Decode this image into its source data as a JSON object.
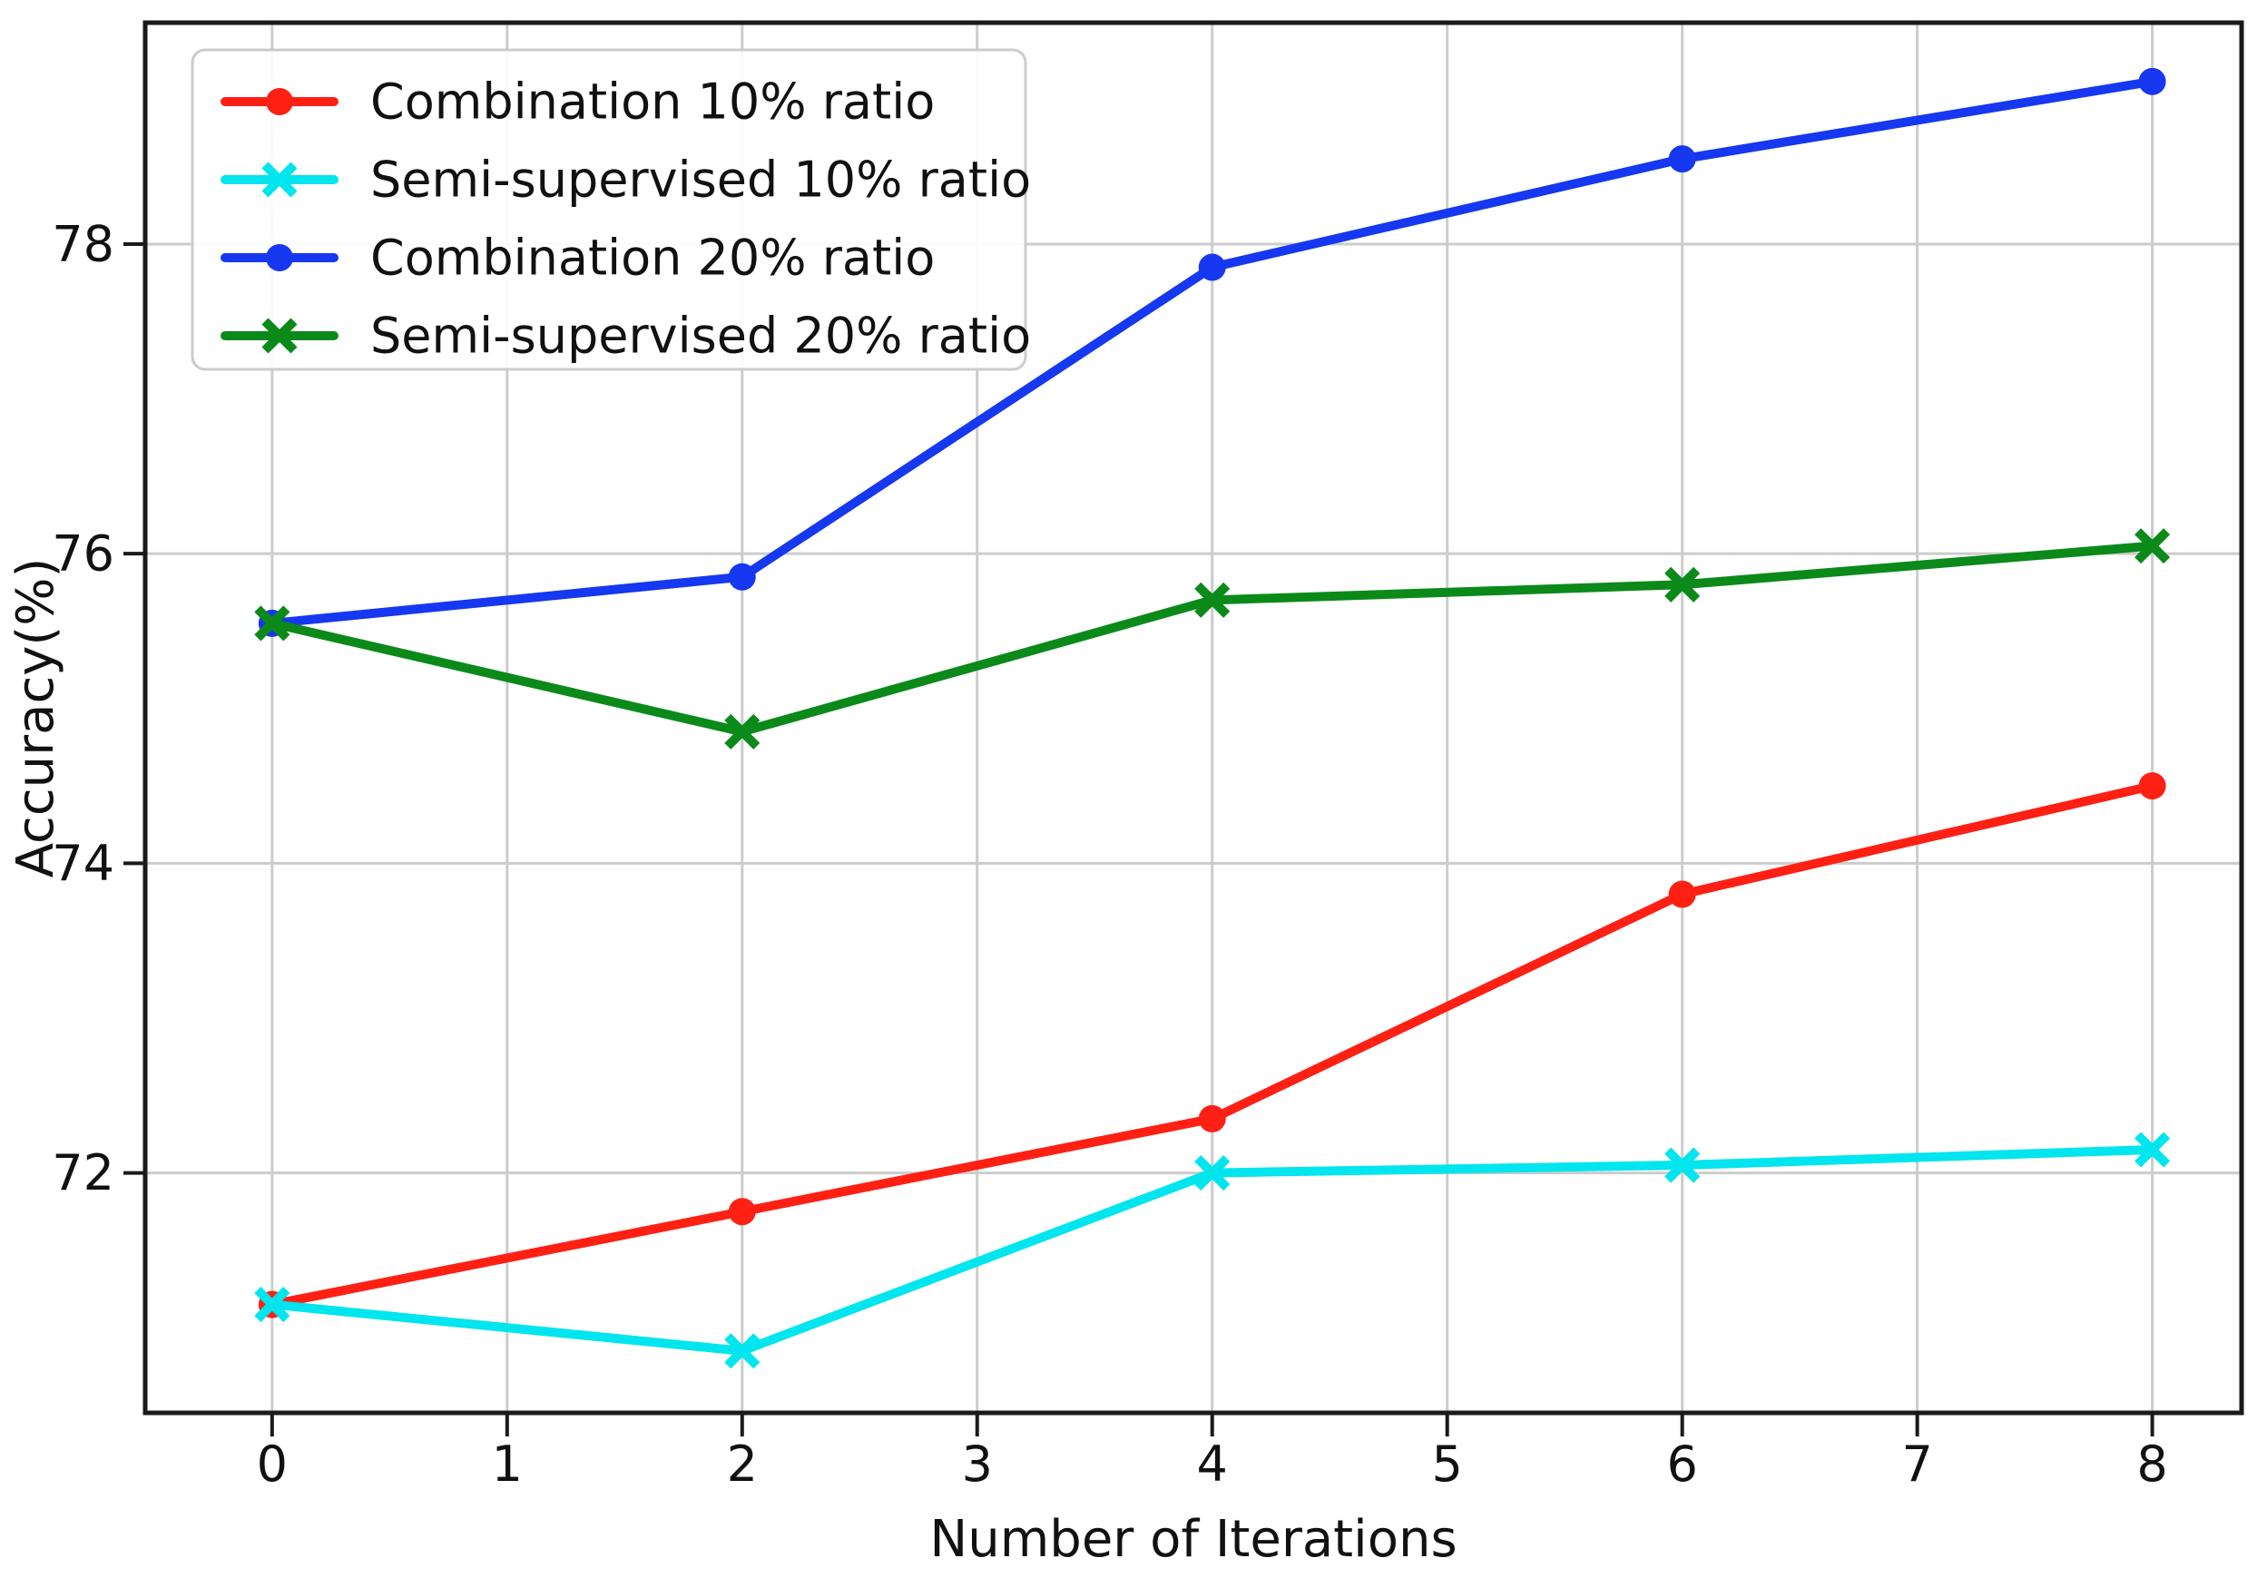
{
  "figure": {
    "background": "#ffffff",
    "frame_color": "#1a1a1a",
    "grid_color": "#cccccc",
    "tick_color": "#1a1a1a",
    "text_color": "#111111",
    "legend_border_color": "#cccccc",
    "legend_background": "#ffffff"
  },
  "chart_data": {
    "type": "line",
    "title": "",
    "xlabel": "Number of Iterations",
    "ylabel": "Accuracy(%)",
    "x": [
      0,
      2,
      4,
      6,
      8
    ],
    "xticks": [
      0,
      1,
      2,
      3,
      4,
      5,
      6,
      7,
      8
    ],
    "yticks": [
      72,
      74,
      76,
      78
    ],
    "xlim": [
      -0.54,
      8.38
    ],
    "ylim": [
      70.45,
      79.43
    ],
    "grid": true,
    "legend_position": "upper-left",
    "series": [
      {
        "name": "Combination 10% ratio",
        "color": "#ff2014",
        "marker": "circle",
        "values": [
          71.15,
          71.75,
          72.35,
          73.8,
          74.5
        ]
      },
      {
        "name": "Semi-supervised 10% ratio",
        "color": "#00e5ee",
        "marker": "x",
        "values": [
          71.15,
          70.85,
          72.0,
          72.05,
          72.15
        ]
      },
      {
        "name": "Combination 20% ratio",
        "color": "#1538f0",
        "marker": "circle",
        "values": [
          75.55,
          75.85,
          77.85,
          78.55,
          79.05
        ]
      },
      {
        "name": "Semi-supervised 20% ratio",
        "color": "#0b8a1a",
        "marker": "x",
        "values": [
          75.55,
          74.85,
          75.7,
          75.8,
          76.05
        ]
      }
    ]
  }
}
